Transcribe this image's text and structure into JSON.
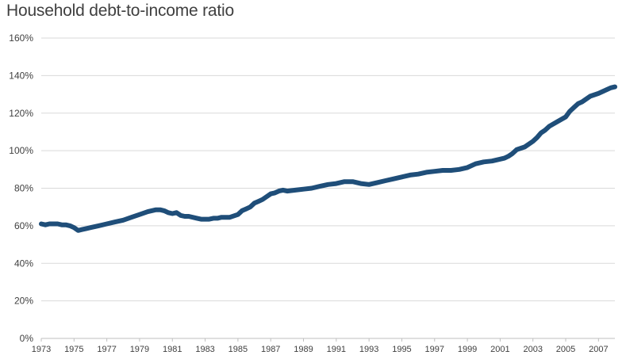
{
  "chart_data": {
    "type": "line",
    "title": "Household debt-to-income ratio",
    "xlabel": "",
    "ylabel": "",
    "grid": true,
    "legend": "none",
    "ylim": [
      0,
      160
    ],
    "xlim": [
      1973,
      2008
    ],
    "y_ticks": [
      "0%",
      "20%",
      "40%",
      "60%",
      "80%",
      "100%",
      "120%",
      "140%",
      "160%"
    ],
    "y_tick_values": [
      0,
      20,
      40,
      60,
      80,
      100,
      120,
      140,
      160
    ],
    "x_ticks": [
      "1973",
      "1975",
      "1977",
      "1979",
      "1981",
      "1983",
      "1985",
      "1987",
      "1989",
      "1991",
      "1993",
      "1995",
      "1997",
      "1999",
      "2001",
      "2003",
      "2005",
      "2007"
    ],
    "x_tick_values": [
      1973,
      1975,
      1977,
      1979,
      1981,
      1983,
      1985,
      1987,
      1989,
      1991,
      1993,
      1995,
      1997,
      1999,
      2001,
      2003,
      2005,
      2007
    ],
    "line_color": "#1f4e79",
    "series": [
      {
        "x": [
          1973.0,
          1973.25,
          1973.5,
          1973.75,
          1974.0,
          1974.25,
          1974.5,
          1974.75,
          1975.0,
          1975.25,
          1975.5,
          1975.75,
          1976.0,
          1976.5,
          1977.0,
          1977.5,
          1978.0,
          1978.5,
          1979.0,
          1979.5,
          1980.0,
          1980.25,
          1980.5,
          1980.75,
          1981.0,
          1981.25,
          1981.5,
          1981.75,
          1982.0,
          1982.5,
          1982.75,
          1983.0,
          1983.25,
          1983.5,
          1983.75,
          1984.0,
          1984.5,
          1985.0,
          1985.25,
          1985.5,
          1985.75,
          1986.0,
          1986.25,
          1986.5,
          1986.75,
          1987.0,
          1987.25,
          1987.5,
          1987.75,
          1988.0,
          1988.5,
          1989.0,
          1989.5,
          1990.0,
          1990.5,
          1991.0,
          1991.5,
          1992.0,
          1992.5,
          1993.0,
          1993.5,
          1994.0,
          1994.5,
          1995.0,
          1995.5,
          1996.0,
          1996.5,
          1997.0,
          1997.5,
          1998.0,
          1998.5,
          1999.0,
          1999.5,
          2000.0,
          2000.5,
          2001.0,
          2001.25,
          2001.5,
          2001.75,
          2002.0,
          2002.5,
          2003.0,
          2003.25,
          2003.5,
          2003.75,
          2004.0,
          2004.5,
          2005.0,
          2005.25,
          2005.5,
          2005.75,
          2006.0,
          2006.5,
          2007.0,
          2007.25,
          2007.5,
          2007.75,
          2008.0
        ],
        "y": [
          61,
          60.5,
          61,
          61,
          61,
          60.5,
          60.5,
          60,
          59,
          57.5,
          58,
          58.5,
          59,
          60,
          61,
          62,
          63,
          64.5,
          66,
          67.5,
          68.5,
          68.5,
          68,
          67,
          66.5,
          67,
          65.5,
          65,
          65,
          64,
          63.5,
          63.5,
          63.5,
          64,
          64,
          64.5,
          64.5,
          66,
          68,
          69,
          70,
          72,
          73,
          74,
          75.5,
          77,
          77.5,
          78.5,
          79,
          78.5,
          79,
          79.5,
          80,
          81,
          82,
          82.5,
          83.5,
          83.5,
          82.5,
          82,
          83,
          84,
          85,
          86,
          87,
          87.5,
          88.5,
          89,
          89.5,
          89.5,
          90,
          91,
          93,
          94,
          94.5,
          95.5,
          96,
          97,
          98.5,
          100.5,
          102,
          105,
          107,
          109.5,
          111,
          113,
          115.5,
          118,
          121,
          123,
          125,
          126,
          129,
          130.5,
          131.5,
          132.5,
          133.5,
          134
        ]
      }
    ]
  }
}
